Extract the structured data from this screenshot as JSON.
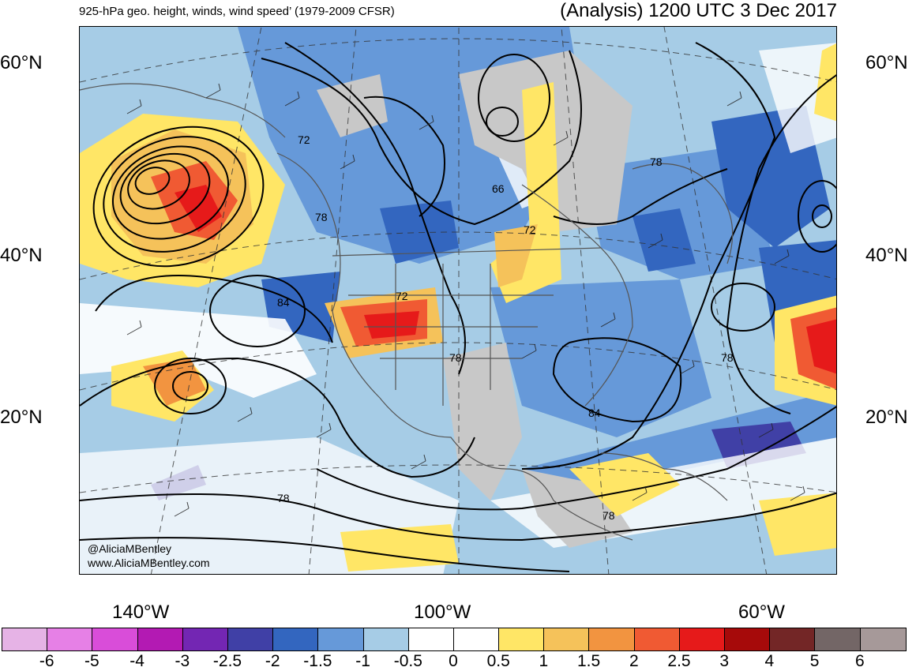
{
  "header": {
    "left_title": "925-hPa geo. height, winds, wind speed’ (1979-2009 CFSR)",
    "right_title": "(Analysis) 1200 UTC 3 Dec 2017"
  },
  "map": {
    "lat_labels": [
      "60°N",
      "40°N",
      "20°N"
    ],
    "lon_labels": [
      "140°W",
      "100°W",
      "60°W"
    ],
    "contour_labels": [
      "72",
      "66",
      "78",
      "72",
      "72",
      "84",
      "78",
      "78",
      "84",
      "78",
      "78",
      "78"
    ],
    "credits": [
      "@AliciaMBentley",
      "www.AliciaMBentley.com"
    ]
  },
  "colorbar": {
    "labels": [
      "-6",
      "-5",
      "-4",
      "-3",
      "-2.5",
      "-2",
      "-1.5",
      "-1",
      "-0.5",
      "0",
      "0.5",
      "1",
      "1.5",
      "2",
      "2.5",
      "3",
      "4",
      "5",
      "6"
    ],
    "colors": [
      "#e6b3e6",
      "#e680e6",
      "#d94dd9",
      "#b31ab3",
      "#7326b3",
      "#4040a6",
      "#3366bf",
      "#6699d9",
      "#a6cce6",
      "#ffffff",
      "#ffffff",
      "#ffe666",
      "#f5c25a",
      "#f29440",
      "#f05a33",
      "#e61a1a",
      "#a60a0a",
      "#732626",
      "#736666",
      "#a69999"
    ]
  }
}
